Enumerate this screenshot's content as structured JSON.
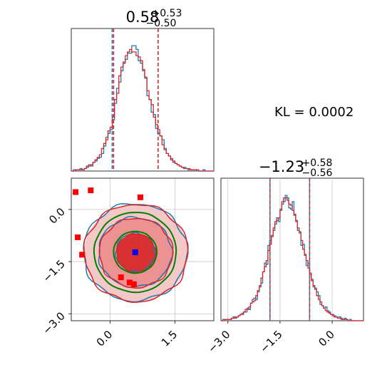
{
  "kl_label": "KL = 0.0002",
  "colors": {
    "blue": "#1f77b4",
    "red": "#d62728",
    "green": "#008000",
    "marker_blue": "#0000ff",
    "marker_red": "#ff0000",
    "grid": "#c8c8c8"
  },
  "chart_data": [
    {
      "type": "histogram",
      "panel": "top-left",
      "parameter": "x",
      "title": {
        "median": "0.58",
        "upper": "+0.53",
        "lower": "−0.50"
      },
      "xlim": [
        -0.9,
        2.4
      ],
      "quantile_lines": [
        0.08,
        0.58,
        1.11
      ],
      "bins_x": [
        -0.9,
        -0.85,
        -0.8,
        -0.75,
        -0.7,
        -0.65,
        -0.6,
        -0.55,
        -0.5,
        -0.45,
        -0.4,
        -0.35,
        -0.3,
        -0.25,
        -0.2,
        -0.15,
        -0.1,
        -0.05,
        0.0,
        0.05,
        0.1,
        0.15,
        0.2,
        0.25,
        0.3,
        0.35,
        0.4,
        0.45,
        0.5,
        0.55,
        0.6,
        0.65,
        0.7,
        0.75,
        0.8,
        0.85,
        0.9,
        0.95,
        1.0,
        1.05,
        1.1,
        1.15,
        1.2,
        1.25,
        1.3,
        1.35,
        1.4,
        1.45,
        1.5,
        1.55,
        1.6,
        1.65,
        1.7,
        1.75,
        1.8,
        1.85,
        1.9,
        1.95,
        2.0,
        2.05,
        2.1,
        2.15,
        2.2,
        2.25,
        2.3,
        2.35
      ],
      "series": [
        {
          "name": "blue",
          "counts": [
            0,
            1,
            1,
            1,
            2,
            1,
            2,
            3,
            5,
            4,
            7,
            8,
            10,
            11,
            14,
            20,
            27,
            30,
            33,
            41,
            54,
            66,
            71,
            80,
            87,
            89,
            94,
            94,
            100,
            100,
            97,
            88,
            86,
            80,
            74,
            60,
            57,
            47,
            45,
            34,
            30,
            28,
            25,
            18,
            14,
            12,
            10,
            7,
            6,
            5,
            4,
            3,
            3,
            2,
            1,
            1,
            1,
            1,
            0,
            0,
            0,
            1,
            0,
            0,
            0,
            0
          ]
        },
        {
          "name": "red",
          "counts": [
            0,
            0,
            1,
            1,
            1,
            1,
            2,
            4,
            4,
            5,
            7,
            9,
            11,
            13,
            18,
            22,
            25,
            32,
            35,
            43,
            57,
            62,
            76,
            83,
            86,
            92,
            95,
            97,
            95,
            95,
            92,
            91,
            88,
            81,
            75,
            64,
            57,
            53,
            43,
            37,
            33,
            28,
            21,
            17,
            14,
            12,
            9,
            8,
            6,
            5,
            4,
            3,
            2,
            2,
            2,
            1,
            1,
            1,
            1,
            0,
            0,
            0,
            0,
            0,
            0,
            0
          ]
        }
      ]
    },
    {
      "type": "contour",
      "panel": "bottom-left",
      "x_parameter": "x",
      "y_parameter": "y",
      "xlim": [
        -0.9,
        2.4
      ],
      "ylim": [
        -3.2,
        0.9
      ],
      "x_ticks": [
        "0.0",
        "1.5"
      ],
      "x_tick_values": [
        0.0,
        1.5
      ],
      "y_ticks": [
        "0.0",
        "−1.5",
        "−3.0"
      ],
      "y_tick_values": [
        0.0,
        -1.5,
        -3.0
      ],
      "contours": [
        {
          "name": "blue",
          "center": [
            0.58,
            -1.23
          ],
          "radii": [
            [
              0.45,
              0.55
            ],
            [
              0.85,
              1.0
            ],
            [
              1.2,
              1.4
            ]
          ]
        },
        {
          "name": "red",
          "center": [
            0.6,
            -1.25
          ],
          "radii": [
            [
              0.45,
              0.55
            ],
            [
              0.85,
              1.0
            ],
            [
              1.2,
              1.4
            ]
          ]
        },
        {
          "name": "green",
          "center": [
            0.58,
            -1.23
          ],
          "radii": [
            [
              0.5,
              0.6
            ],
            [
              0.95,
              1.15
            ]
          ]
        }
      ],
      "markers_red": [
        [
          -0.8,
          0.5
        ],
        [
          -0.45,
          0.55
        ],
        [
          0.7,
          0.35
        ],
        [
          -0.75,
          -0.8
        ],
        [
          -0.65,
          -1.3
        ],
        [
          0.25,
          -1.95
        ],
        [
          0.45,
          -2.1
        ],
        [
          0.55,
          -2.15
        ]
      ],
      "marker_blue": [
        0.58,
        -1.23
      ]
    },
    {
      "type": "histogram",
      "panel": "bottom-right",
      "parameter": "y",
      "title": {
        "median": "−1.23",
        "upper": "+0.58",
        "lower": "−0.56"
      },
      "xlim": [
        -3.2,
        0.9
      ],
      "x_ticks": [
        "−3.0",
        "−1.5",
        "0.0"
      ],
      "x_tick_values": [
        -3.0,
        -1.5,
        0.0
      ],
      "quantile_lines": [
        -1.79,
        -1.23,
        -0.65
      ],
      "bins_x": [
        -3.2,
        -3.15,
        -3.1,
        -3.05,
        -3.0,
        -2.95,
        -2.9,
        -2.85,
        -2.8,
        -2.75,
        -2.7,
        -2.65,
        -2.6,
        -2.55,
        -2.5,
        -2.45,
        -2.4,
        -2.35,
        -2.3,
        -2.25,
        -2.2,
        -2.15,
        -2.1,
        -2.05,
        -2.0,
        -1.95,
        -1.9,
        -1.85,
        -1.8,
        -1.75,
        -1.7,
        -1.65,
        -1.6,
        -1.55,
        -1.5,
        -1.45,
        -1.4,
        -1.35,
        -1.3,
        -1.25,
        -1.2,
        -1.15,
        -1.1,
        -1.05,
        -1.0,
        -0.95,
        -0.9,
        -0.85,
        -0.8,
        -0.75,
        -0.7,
        -0.65,
        -0.6,
        -0.55,
        -0.5,
        -0.45,
        -0.4,
        -0.35,
        -0.3,
        -0.25,
        -0.2,
        -0.15,
        -0.1,
        -0.05,
        0.0,
        0.05,
        0.1,
        0.15,
        0.2,
        0.25,
        0.3,
        0.35,
        0.4,
        0.45,
        0.5,
        0.55,
        0.6,
        0.65,
        0.7,
        0.75,
        0.8,
        0.85
      ],
      "series": [
        {
          "name": "blue",
          "counts": [
            0,
            1,
            1,
            1,
            1,
            1,
            2,
            3,
            2,
            3,
            4,
            5,
            6,
            7,
            7,
            10,
            9,
            14,
            17,
            18,
            17,
            23,
            28,
            30,
            39,
            46,
            45,
            60,
            64,
            68,
            72,
            77,
            82,
            79,
            89,
            93,
            95,
            100,
            98,
            90,
            89,
            95,
            84,
            80,
            72,
            71,
            60,
            61,
            52,
            44,
            46,
            37,
            33,
            27,
            26,
            23,
            20,
            13,
            12,
            10,
            11,
            8,
            7,
            5,
            5,
            4,
            3,
            3,
            3,
            2,
            1,
            2,
            1,
            0,
            1,
            0,
            0,
            0,
            0,
            0,
            0,
            0
          ]
        },
        {
          "name": "red",
          "counts": [
            0,
            0,
            1,
            1,
            1,
            1,
            2,
            2,
            3,
            3,
            4,
            5,
            5,
            7,
            9,
            9,
            11,
            14,
            15,
            16,
            20,
            24,
            27,
            34,
            39,
            43,
            48,
            56,
            61,
            67,
            74,
            79,
            80,
            82,
            88,
            95,
            98,
            98,
            96,
            93,
            92,
            88,
            85,
            79,
            74,
            70,
            64,
            57,
            53,
            48,
            42,
            38,
            32,
            28,
            25,
            20,
            17,
            15,
            12,
            10,
            8,
            7,
            6,
            5,
            4,
            3,
            3,
            2,
            2,
            1,
            1,
            1,
            1,
            0,
            0,
            0,
            0,
            0,
            0,
            0,
            0,
            0
          ]
        }
      ]
    }
  ]
}
